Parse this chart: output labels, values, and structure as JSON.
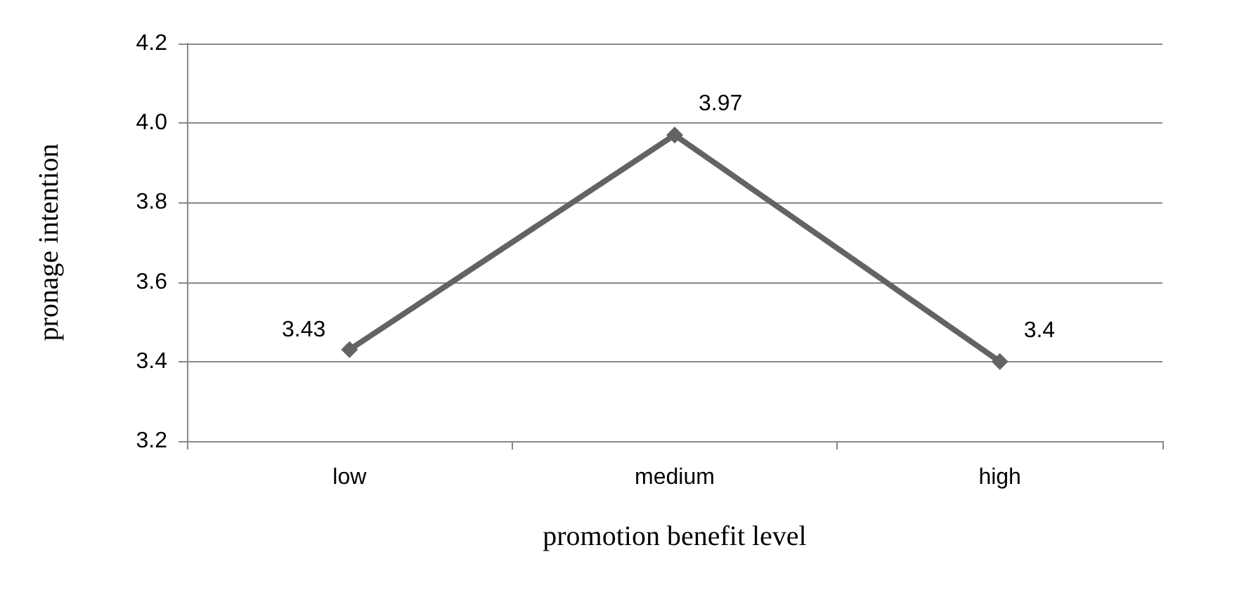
{
  "chart_data": {
    "type": "line",
    "xlabel": "promotion benefit level",
    "ylabel": "pronage intention",
    "categories": [
      "low",
      "medium",
      "high"
    ],
    "series": [
      {
        "color": "#636363",
        "values": [
          3.43,
          3.97,
          3.4
        ]
      }
    ],
    "ylim": [
      3.2,
      4.2
    ],
    "yticks": [
      3.2,
      3.4,
      3.6,
      3.8,
      {
        "value": 4,
        "label": "4.0"
      },
      4.2
    ],
    "grid": "y",
    "marker": "diamond",
    "line_style": "solid",
    "data_labels": true
  }
}
